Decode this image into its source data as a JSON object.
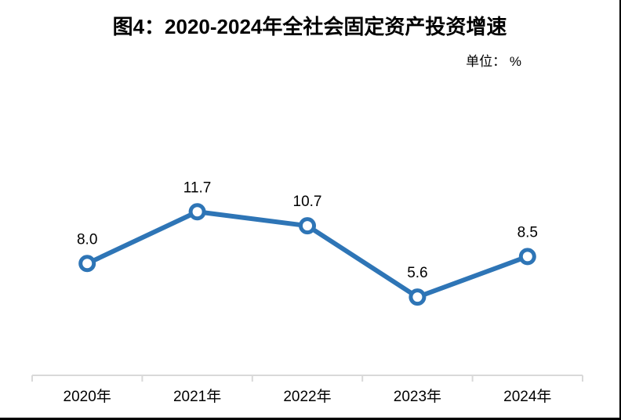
{
  "chart_data": {
    "type": "line",
    "title": "图4：2020-2024年全社会固定资产投资增速",
    "unit": "单位： %",
    "categories": [
      "2020年",
      "2021年",
      "2022年",
      "2023年",
      "2024年"
    ],
    "values": [
      8.0,
      11.7,
      10.7,
      5.6,
      8.5
    ],
    "data_labels": [
      "8.0",
      "11.7",
      "10.7",
      "5.6",
      "8.5"
    ],
    "xlabel": "",
    "ylabel": "",
    "ylim": [
      0,
      14
    ],
    "y_axis_visible": false,
    "grid": false,
    "legend_position": "none",
    "line_color": "#2E75B6",
    "marker_style": "open-circle",
    "marker_fill": "#FFFFFF",
    "axis_color": "#D9D9D9",
    "text_color": "#000000"
  }
}
